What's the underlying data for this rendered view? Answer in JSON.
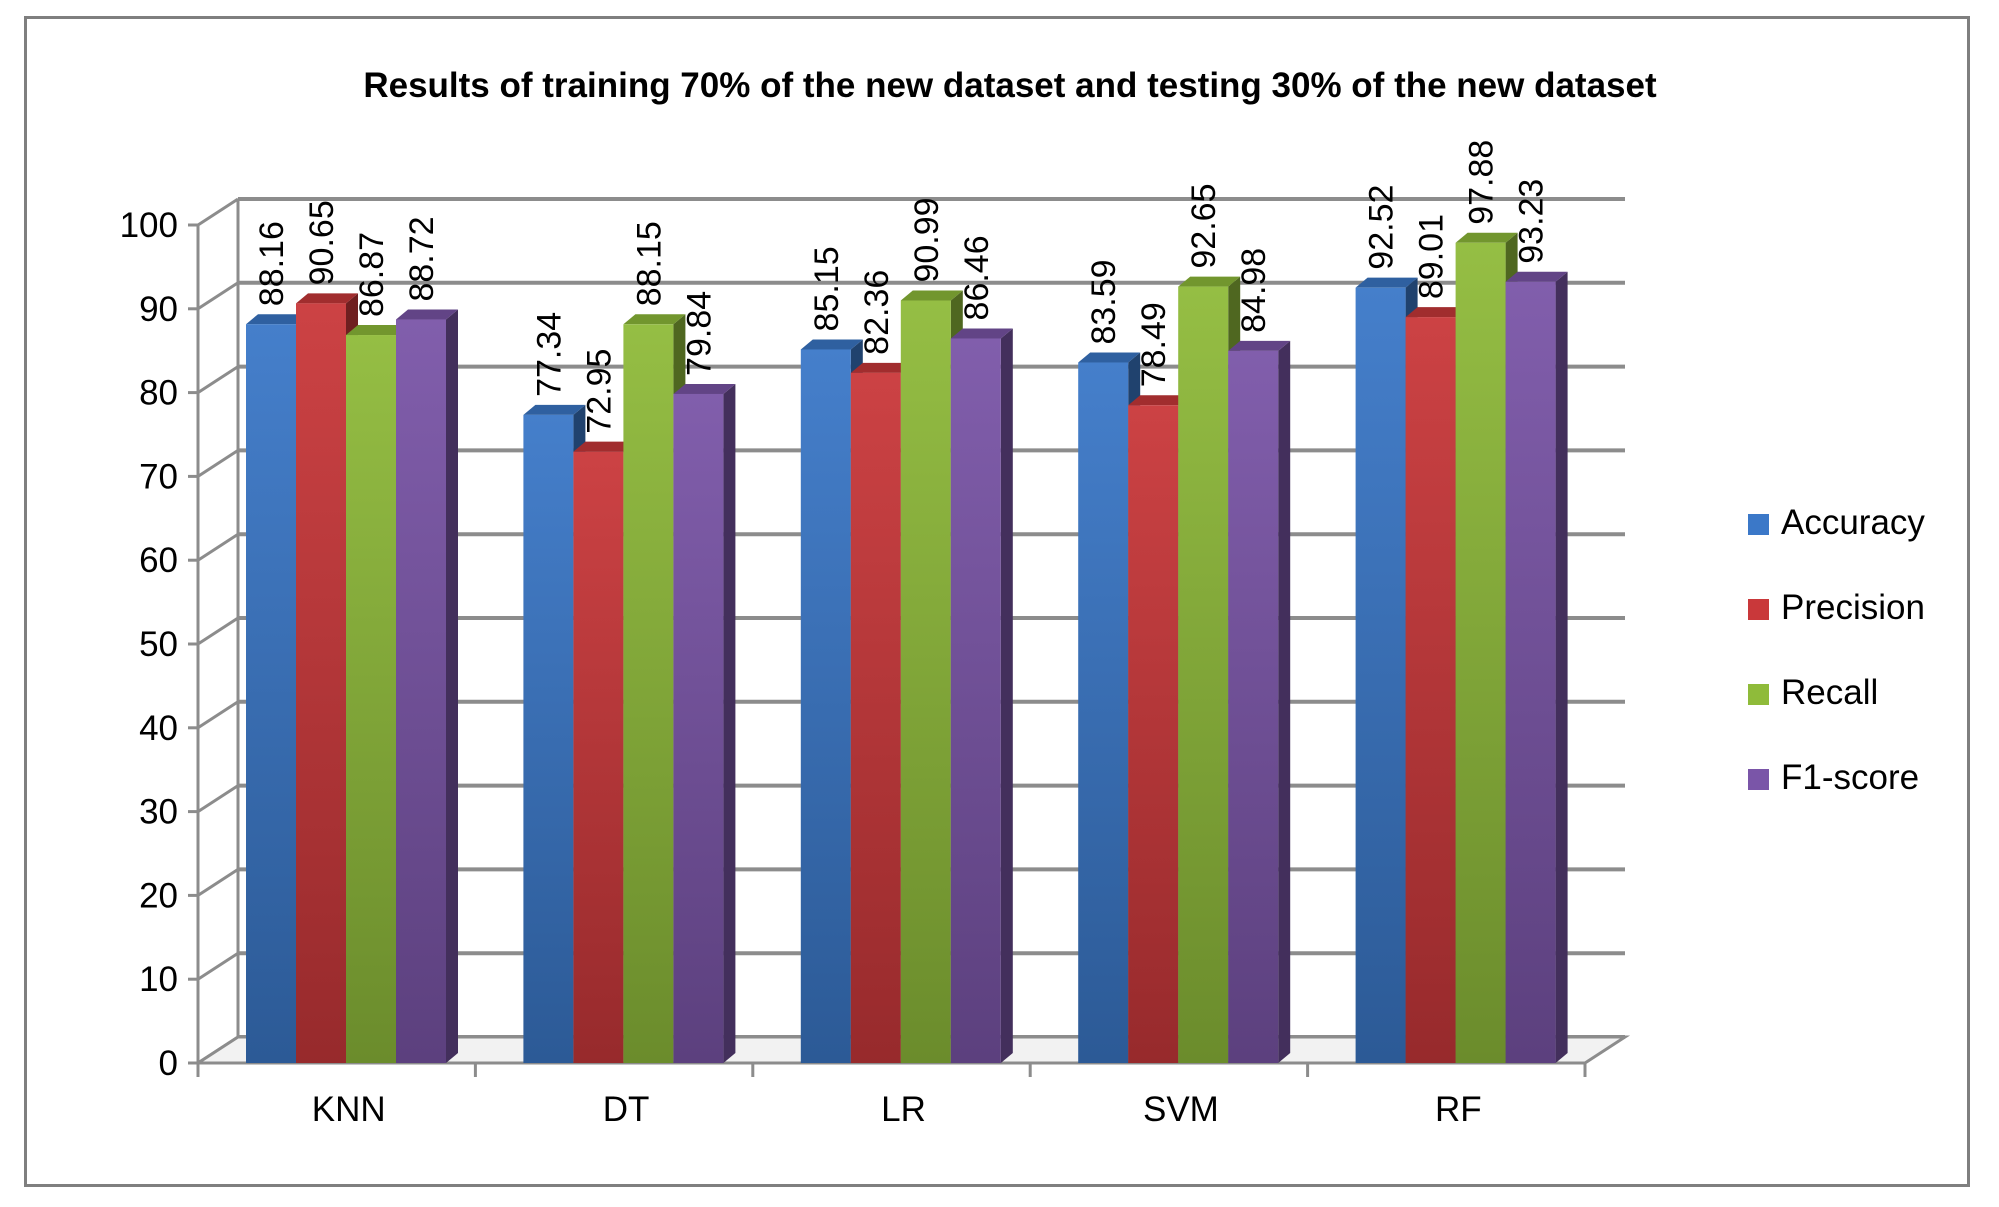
{
  "chart_data": {
    "type": "bar",
    "title": "Results of training 70% of the new dataset and testing 30% of the new dataset",
    "xlabel": "",
    "ylabel": "",
    "categories": [
      "KNN",
      "DT",
      "LR",
      "SVM",
      "RF"
    ],
    "ylim": [
      0,
      100
    ],
    "yticks": [
      0,
      10,
      20,
      30,
      40,
      50,
      60,
      70,
      80,
      90,
      100
    ],
    "grid": true,
    "legend_position": "right",
    "style": "3d-clustered-column",
    "series": [
      {
        "name": "Accuracy",
        "color": "#3b78c8",
        "values": [
          88.16,
          77.34,
          85.15,
          83.59,
          92.52
        ]
      },
      {
        "name": "Precision",
        "color": "#c9383a",
        "values": [
          90.65,
          72.95,
          82.36,
          78.49,
          89.01
        ]
      },
      {
        "name": "Recall",
        "color": "#8fbb3a",
        "values": [
          86.87,
          88.15,
          90.99,
          92.65,
          97.88
        ]
      },
      {
        "name": "F1-score",
        "color": "#7a55a8",
        "values": [
          88.72,
          79.84,
          86.46,
          84.98,
          93.23
        ]
      }
    ]
  }
}
